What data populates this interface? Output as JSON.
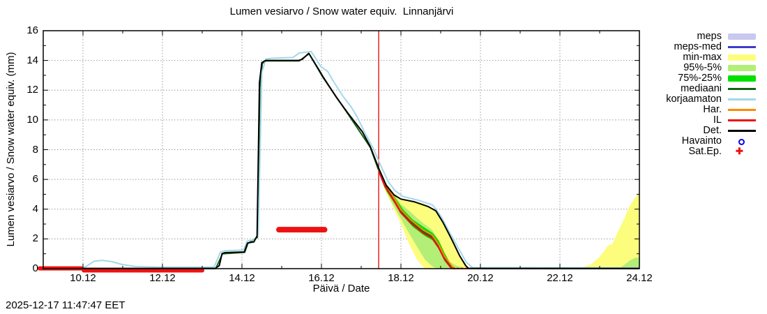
{
  "title": "Lumen vesiarvo / Snow water equiv.  Linnanjärvi",
  "timestamp": "2025-12-17 11:47:47 EET",
  "axes": {
    "ylabel": "Lumen vesiarvo / Snow water equiv. (mm)",
    "xlabel": "Päivä / Date",
    "x_range": [
      9.12,
      24.12
    ],
    "y_range": [
      0,
      16
    ],
    "x_ticks": [
      {
        "d": 10.12,
        "label": "10.12"
      },
      {
        "d": 12.12,
        "label": "12.12"
      },
      {
        "d": 14.12,
        "label": "14.12"
      },
      {
        "d": 16.12,
        "label": "16.12"
      },
      {
        "d": 18.12,
        "label": "18.12"
      },
      {
        "d": 20.12,
        "label": "20.12"
      },
      {
        "d": 22.12,
        "label": "22.12"
      },
      {
        "d": 24.12,
        "label": "24.12"
      }
    ],
    "x_minor_ticks": [
      11.12,
      13.12,
      15.12,
      17.12,
      19.12,
      21.12,
      23.12
    ],
    "y_ticks": [
      0,
      2,
      4,
      6,
      8,
      10,
      12,
      14,
      16
    ],
    "y_minor_ticks": [
      1,
      3,
      5,
      7,
      9,
      11,
      13,
      15
    ],
    "grid": true
  },
  "colors": {
    "meps": "#c8c8f0",
    "meps_med": "#3c3cc8",
    "minmax": "#fdfd7d",
    "p95": "#b3ee77",
    "p75": "#00e000",
    "mediaani": "#156415",
    "korjaamaton": "#a3d8e8",
    "har": "#ff8a00",
    "il": "#ee1111",
    "det": "#000000",
    "havainto": "#0000ee",
    "satep": "#ee1111",
    "now_line": "#dd0000",
    "grid_line": "#999999",
    "border": "#000000"
  },
  "legend": [
    {
      "label": "meps",
      "type": "band",
      "color_key": "meps"
    },
    {
      "label": "meps-med",
      "type": "line",
      "color_key": "meps_med"
    },
    {
      "label": "min-max",
      "type": "band",
      "color_key": "minmax"
    },
    {
      "label": "95%-5%",
      "type": "band",
      "color_key": "p95"
    },
    {
      "label": "75%-25%",
      "type": "band",
      "color_key": "p75"
    },
    {
      "label": "mediaani",
      "type": "line",
      "color_key": "mediaani"
    },
    {
      "label": "korjaamaton",
      "type": "line",
      "color_key": "korjaamaton"
    },
    {
      "label": "Har.",
      "type": "line",
      "color_key": "har"
    },
    {
      "label": "IL",
      "type": "line",
      "color_key": "il"
    },
    {
      "label": "Det.",
      "type": "line",
      "color_key": "det"
    },
    {
      "label": "Havainto",
      "type": "marker-circle",
      "color_key": "havainto"
    },
    {
      "label": "Sat.Ep.",
      "type": "marker-plus",
      "color_key": "satep"
    }
  ],
  "now_line": {
    "d": 17.56
  },
  "chart_data": {
    "type": "line",
    "title": "Lumen vesiarvo / Snow water equiv.  Linnanjärvi",
    "xlabel": "Päivä / Date",
    "ylabel": "Lumen vesiarvo / Snow water equiv. (mm)",
    "xlim_days_dec": [
      9.12,
      24.12
    ],
    "ylim_mm": [
      0,
      16
    ],
    "bands": [
      {
        "name": "min-max",
        "color_key": "minmax",
        "points": [
          [
            17.56,
            6.55,
            6.8
          ],
          [
            17.72,
            5.25,
            5.8
          ],
          [
            17.9,
            4.25,
            5.15
          ],
          [
            18.12,
            3.0,
            4.72
          ],
          [
            18.32,
            1.7,
            4.58
          ],
          [
            18.52,
            0.62,
            4.48
          ],
          [
            18.67,
            0.12,
            4.4
          ],
          [
            18.74,
            0,
            4.33
          ],
          [
            19.0,
            0,
            3.9
          ],
          [
            19.18,
            0,
            3.15
          ],
          [
            19.42,
            0,
            1.95
          ],
          [
            19.62,
            0,
            0.85
          ],
          [
            19.78,
            0,
            0.1
          ],
          [
            19.84,
            0,
            0
          ],
          [
            22.6,
            0,
            0
          ],
          [
            22.9,
            0,
            0.3
          ],
          [
            23.1,
            0,
            0.75
          ],
          [
            23.24,
            0,
            1.2
          ],
          [
            23.32,
            0,
            1.55
          ],
          [
            23.44,
            0,
            1.65
          ],
          [
            23.56,
            0,
            2.4
          ],
          [
            23.72,
            0,
            3.25
          ],
          [
            23.86,
            0,
            4.15
          ],
          [
            24.0,
            0,
            4.75
          ],
          [
            24.12,
            0,
            5.1
          ]
        ]
      },
      {
        "name": "95%-5%",
        "color_key": "p95",
        "points": [
          [
            17.56,
            6.5,
            6.72
          ],
          [
            17.72,
            5.35,
            5.85
          ],
          [
            17.9,
            4.4,
            5.2
          ],
          [
            18.12,
            3.35,
            4.32
          ],
          [
            18.32,
            2.4,
            3.92
          ],
          [
            18.52,
            1.5,
            3.42
          ],
          [
            18.72,
            0.62,
            2.97
          ],
          [
            18.9,
            0.17,
            2.62
          ],
          [
            19.02,
            0,
            2.12
          ],
          [
            19.18,
            0,
            1.15
          ],
          [
            19.32,
            0,
            0.5
          ],
          [
            19.52,
            0,
            0.2
          ],
          [
            19.72,
            0,
            0.05
          ],
          [
            19.78,
            0,
            0
          ],
          [
            23.6,
            0,
            0
          ],
          [
            23.74,
            0,
            0.25
          ],
          [
            23.88,
            0,
            0.55
          ],
          [
            24.0,
            0,
            0.72
          ],
          [
            24.12,
            0,
            0.75
          ]
        ]
      },
      {
        "name": "75%-25%",
        "color_key": "p75",
        "points": [
          [
            17.56,
            6.52,
            6.64
          ],
          [
            17.77,
            5.15,
            5.55
          ],
          [
            17.97,
            4.35,
            4.8
          ],
          [
            18.17,
            3.55,
            4.0
          ],
          [
            18.42,
            2.8,
            3.3
          ],
          [
            18.72,
            2.2,
            2.75
          ],
          [
            18.92,
            1.9,
            2.4
          ],
          [
            19.07,
            1.3,
            1.9
          ],
          [
            19.22,
            0.5,
            1.05
          ],
          [
            19.37,
            0.04,
            0.32
          ],
          [
            19.42,
            0,
            0.06
          ]
        ]
      }
    ],
    "series": [
      {
        "name": "mediaani",
        "color_key": "mediaani",
        "width": 2,
        "points": [
          [
            9.12,
            0
          ],
          [
            13.46,
            0
          ],
          [
            13.63,
            1.0
          ],
          [
            14.19,
            1.1
          ],
          [
            14.27,
            1.7
          ],
          [
            14.51,
            2.1
          ],
          [
            14.57,
            12.2
          ],
          [
            14.63,
            13.8
          ],
          [
            14.73,
            13.97
          ],
          [
            15.56,
            13.97
          ],
          [
            15.81,
            14.45
          ],
          [
            16.16,
            12.85
          ],
          [
            16.8,
            10.35
          ],
          [
            17.35,
            8.15
          ],
          [
            17.56,
            6.6
          ],
          [
            17.72,
            5.6
          ],
          [
            17.9,
            4.85
          ],
          [
            18.12,
            3.85
          ],
          [
            18.37,
            3.15
          ],
          [
            18.67,
            2.5
          ],
          [
            18.9,
            2.15
          ],
          [
            19.07,
            1.5
          ],
          [
            19.22,
            0.7
          ],
          [
            19.4,
            0.08
          ],
          [
            19.45,
            0
          ],
          [
            24.12,
            0
          ]
        ]
      },
      {
        "name": "Har.",
        "color_key": "har",
        "width": 2,
        "points": [
          [
            17.56,
            6.68
          ],
          [
            17.72,
            5.72
          ],
          [
            17.9,
            4.97
          ],
          [
            18.12,
            3.97
          ],
          [
            18.37,
            3.27
          ],
          [
            18.67,
            2.62
          ],
          [
            18.9,
            2.27
          ],
          [
            19.07,
            1.62
          ],
          [
            19.22,
            0.82
          ],
          [
            19.42,
            0.12
          ],
          [
            19.5,
            0
          ],
          [
            20.05,
            0
          ]
        ]
      },
      {
        "name": "IL",
        "color_key": "il",
        "width": 2,
        "points": [
          [
            17.56,
            6.55
          ],
          [
            17.72,
            5.5
          ],
          [
            17.9,
            4.75
          ],
          [
            18.12,
            3.75
          ],
          [
            18.37,
            3.05
          ],
          [
            18.67,
            2.4
          ],
          [
            18.9,
            2.05
          ],
          [
            19.07,
            1.4
          ],
          [
            19.22,
            0.6
          ],
          [
            19.38,
            0.04
          ],
          [
            19.42,
            0
          ]
        ]
      },
      {
        "name": "IL-zero",
        "color_key": "il",
        "width": 2,
        "dash": "3,3",
        "points": [
          [
            19.42,
            0.02
          ],
          [
            20.08,
            0.02
          ]
        ]
      },
      {
        "name": "korjaamaton",
        "color_key": "korjaamaton",
        "width": 2,
        "points": [
          [
            9.12,
            0.07
          ],
          [
            10.1,
            0.07
          ],
          [
            10.2,
            0.15
          ],
          [
            10.4,
            0.5
          ],
          [
            10.6,
            0.56
          ],
          [
            10.85,
            0.47
          ],
          [
            11.1,
            0.28
          ],
          [
            11.45,
            0.14
          ],
          [
            12.05,
            0.1
          ],
          [
            13.42,
            0.1
          ],
          [
            13.58,
            1.12
          ],
          [
            13.68,
            1.2
          ],
          [
            14.16,
            1.25
          ],
          [
            14.25,
            1.85
          ],
          [
            14.44,
            1.95
          ],
          [
            14.53,
            2.3
          ],
          [
            14.62,
            13.2
          ],
          [
            14.72,
            14.1
          ],
          [
            14.9,
            14.15
          ],
          [
            15.4,
            14.2
          ],
          [
            15.56,
            14.5
          ],
          [
            15.72,
            14.55
          ],
          [
            15.86,
            14.6
          ],
          [
            15.96,
            14.2
          ],
          [
            16.1,
            13.6
          ],
          [
            16.28,
            13.25
          ],
          [
            16.42,
            12.6
          ],
          [
            16.66,
            11.6
          ],
          [
            16.86,
            10.9
          ],
          [
            17.02,
            10.2
          ],
          [
            17.22,
            9.1
          ],
          [
            17.42,
            8.1
          ],
          [
            17.6,
            7.0
          ],
          [
            17.8,
            5.85
          ],
          [
            17.97,
            5.25
          ],
          [
            18.17,
            4.85
          ],
          [
            18.56,
            4.6
          ],
          [
            18.92,
            4.28
          ],
          [
            19.12,
            3.55
          ],
          [
            19.32,
            2.55
          ],
          [
            19.56,
            1.4
          ],
          [
            19.76,
            0.45
          ],
          [
            19.92,
            0.07
          ],
          [
            24.12,
            0.05
          ]
        ]
      },
      {
        "name": "Det.",
        "color_key": "det",
        "width": 2,
        "points": [
          [
            9.12,
            0.02
          ],
          [
            13.45,
            0.02
          ],
          [
            13.55,
            0.2
          ],
          [
            13.62,
            1.02
          ],
          [
            13.7,
            1.08
          ],
          [
            14.18,
            1.12
          ],
          [
            14.26,
            1.72
          ],
          [
            14.42,
            1.8
          ],
          [
            14.5,
            2.2
          ],
          [
            14.56,
            12.5
          ],
          [
            14.62,
            13.85
          ],
          [
            14.72,
            14.0
          ],
          [
            15.55,
            14.0
          ],
          [
            15.64,
            14.08
          ],
          [
            15.8,
            14.48
          ],
          [
            15.9,
            14.05
          ],
          [
            16.05,
            13.4
          ],
          [
            16.16,
            12.9
          ],
          [
            16.5,
            11.5
          ],
          [
            16.8,
            10.4
          ],
          [
            17.15,
            9.2
          ],
          [
            17.35,
            8.2
          ],
          [
            17.56,
            6.75
          ],
          [
            17.75,
            5.6
          ],
          [
            17.95,
            4.95
          ],
          [
            18.12,
            4.68
          ],
          [
            18.45,
            4.5
          ],
          [
            18.8,
            4.18
          ],
          [
            19.0,
            3.88
          ],
          [
            19.18,
            3.1
          ],
          [
            19.4,
            1.95
          ],
          [
            19.6,
            0.85
          ],
          [
            19.75,
            0.2
          ],
          [
            19.82,
            0.02
          ],
          [
            24.12,
            0.02
          ]
        ]
      }
    ],
    "observation_segments": [
      {
        "name": "sat-ep-obs-1",
        "color_key": "satep",
        "d1": 9.03,
        "d2": 10.08,
        "value": 0.02,
        "thickness": 6
      },
      {
        "name": "sat-ep-obs-2",
        "color_key": "satep",
        "d1": 10.14,
        "d2": 13.12,
        "value": -0.12,
        "thickness": 6
      },
      {
        "name": "il-obs",
        "color_key": "il",
        "d1": 15.05,
        "d2": 16.2,
        "value": 2.62,
        "thickness": 8
      }
    ]
  }
}
